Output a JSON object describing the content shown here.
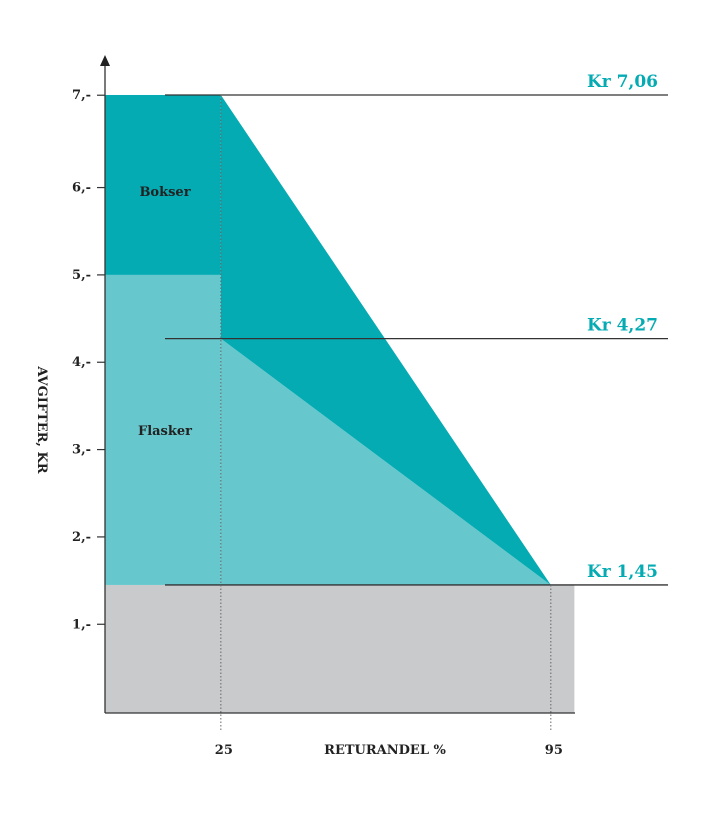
{
  "chart_data": {
    "type": "area",
    "title": "",
    "xlabel": "RETURANDEL %",
    "ylabel": "AVGIFTER, KR",
    "xlim": [
      0,
      100
    ],
    "ylim": [
      0,
      7.06
    ],
    "x_ticks": [
      {
        "value": 25,
        "label": "25"
      },
      {
        "value": 95,
        "label": "95"
      }
    ],
    "y_ticks": [
      {
        "value": 1,
        "label": "1,-"
      },
      {
        "value": 2,
        "label": "2,-"
      },
      {
        "value": 3,
        "label": "3,-"
      },
      {
        "value": 4,
        "label": "4,-"
      },
      {
        "value": 5,
        "label": "5,-"
      },
      {
        "value": 6,
        "label": "6,-"
      },
      {
        "value": 7,
        "label": "7,-"
      }
    ],
    "reference_lines": [
      {
        "value": 7.06,
        "label": "Kr 7,06"
      },
      {
        "value": 4.27,
        "label": "Kr 4,27"
      },
      {
        "value": 1.45,
        "label": "Kr 1,45"
      }
    ],
    "series": [
      {
        "name": "Bokser",
        "color": "#05abb3",
        "points": [
          [
            25,
            7.06
          ],
          [
            95,
            1.45
          ]
        ],
        "base_rect": [
          0,
          25,
          5,
          7.06
        ]
      },
      {
        "name": "Flasker",
        "color": "#66c8cd",
        "points": [
          [
            25,
            4.27
          ],
          [
            95,
            1.45
          ]
        ],
        "base_rect": [
          0,
          25,
          1.45,
          5
        ]
      },
      {
        "name": "base",
        "color": "#c9cacc",
        "range": [
          0,
          100,
          0,
          1.45
        ]
      }
    ],
    "grid": false
  }
}
